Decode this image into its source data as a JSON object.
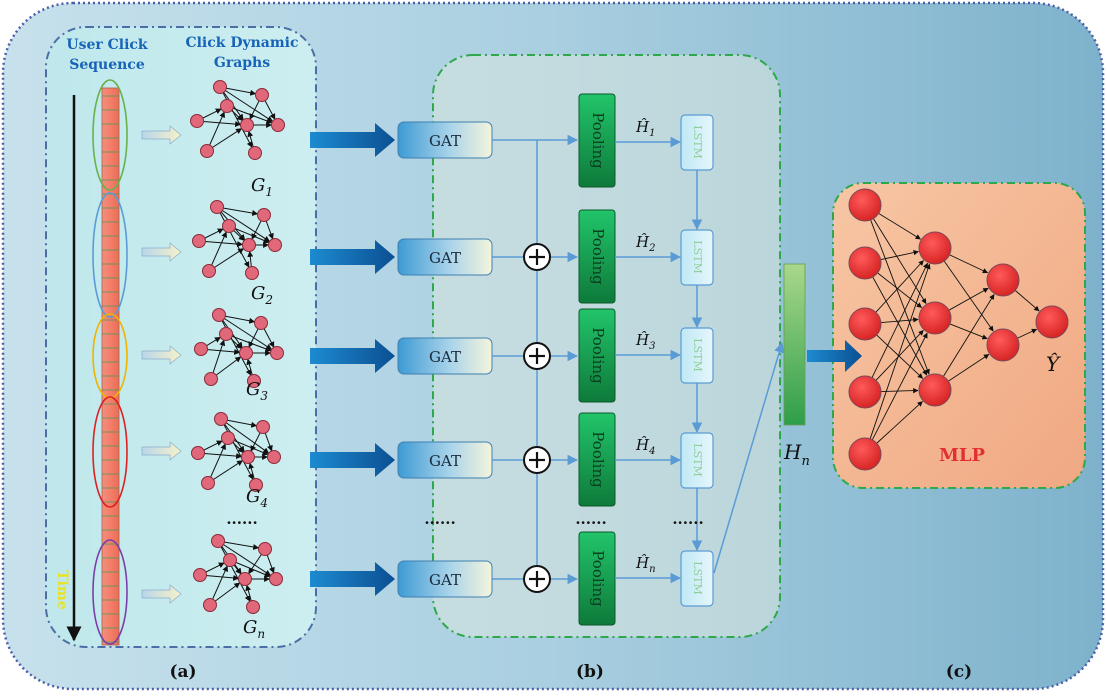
{
  "panel_a": {
    "sequence_title_1": "User Click",
    "sequence_title_2": "Sequence",
    "graphs_title_1": "Click Dynamic",
    "graphs_title_2": "Graphs",
    "time_label": "Time",
    "graph_labels": [
      {
        "base": "G",
        "sub": "1"
      },
      {
        "base": "G",
        "sub": "2"
      },
      {
        "base": "G",
        "sub": "3"
      },
      {
        "base": "G",
        "sub": "4"
      },
      {
        "base": "G",
        "sub": "n"
      }
    ],
    "ellipsis": "......"
  },
  "panel_b": {
    "gat_label": "GAT",
    "pooling_label": "Pooling",
    "lstm_label": "LSTM",
    "hidden_labels": [
      {
        "base": "Ĥ",
        "sub": "1"
      },
      {
        "base": "Ĥ",
        "sub": "2"
      },
      {
        "base": "Ĥ",
        "sub": "3"
      },
      {
        "base": "Ĥ",
        "sub": "4"
      },
      {
        "base": "Ĥ",
        "sub": "n"
      }
    ],
    "ellipsis": "......",
    "plus_symbol": "+"
  },
  "output": {
    "hn_base": "H",
    "hn_sub": "n"
  },
  "panel_c": {
    "mlp_label": "MLP",
    "y_label": "Ŷ"
  },
  "captions": {
    "a": "(a)",
    "b": "(b)",
    "c": "(c)"
  },
  "colors": {
    "node_red": "#e8384a",
    "graph_node_pink": "#e0687a",
    "gat_blue": "#4aa6d6",
    "pooling_green": "#1f9e54",
    "arrow_blue": "#1b7fc6",
    "panel_a_border": "#4a6fa6",
    "panel_green_border": "#2ea84a",
    "mlp_bg": "#f3b38c",
    "mlp_text": "#e23030",
    "title_blue": "#1763b8",
    "time_yellow": "#e6e228"
  }
}
